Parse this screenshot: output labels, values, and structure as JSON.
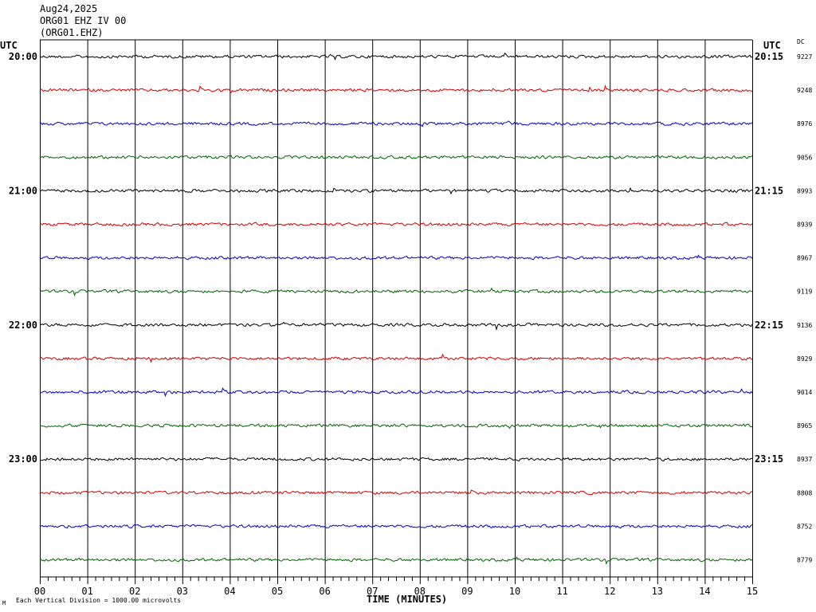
{
  "header": {
    "date": "Aug24,2025",
    "station": "ORG01 EHZ IV 00",
    "channel": "(ORG01.EHZ)"
  },
  "axis": {
    "left_utc": "UTC",
    "right_utc": "UTC",
    "dc_label": "DC",
    "xlabel": "TIME (MINUTES)",
    "scale_note": "Each Vertical Division = 1000.00 microvolts",
    "corner_mark": "M"
  },
  "chart_data": {
    "type": "line",
    "title": "",
    "xlabel": "TIME (MINUTES)",
    "ylabel": "",
    "xlim": [
      0,
      15
    ],
    "x_ticks": [
      "00",
      "01",
      "02",
      "03",
      "04",
      "05",
      "06",
      "07",
      "08",
      "09",
      "10",
      "11",
      "12",
      "13",
      "14",
      "15"
    ],
    "grid": true,
    "trace_colors": [
      "#000000",
      "#d40000",
      "#0000c8",
      "#006400"
    ],
    "rows": [
      {
        "left": "20:00",
        "right": "20:15",
        "dc": "9227"
      },
      {
        "left": "",
        "right": "",
        "dc": "9248"
      },
      {
        "left": "",
        "right": "",
        "dc": "8976"
      },
      {
        "left": "",
        "right": "",
        "dc": "9056"
      },
      {
        "left": "21:00",
        "right": "21:15",
        "dc": "8993"
      },
      {
        "left": "",
        "right": "",
        "dc": "8939"
      },
      {
        "left": "",
        "right": "",
        "dc": "8967"
      },
      {
        "left": "",
        "right": "",
        "dc": "9119"
      },
      {
        "left": "22:00",
        "right": "22:15",
        "dc": "9136"
      },
      {
        "left": "",
        "right": "",
        "dc": "8929"
      },
      {
        "left": "",
        "right": "",
        "dc": "9014"
      },
      {
        "left": "",
        "right": "",
        "dc": "8965"
      },
      {
        "left": "23:00",
        "right": "23:15",
        "dc": "8937"
      },
      {
        "left": "",
        "right": "",
        "dc": "8808"
      },
      {
        "left": "",
        "right": "",
        "dc": "8752"
      },
      {
        "left": "",
        "right": "",
        "dc": "8779"
      }
    ]
  }
}
